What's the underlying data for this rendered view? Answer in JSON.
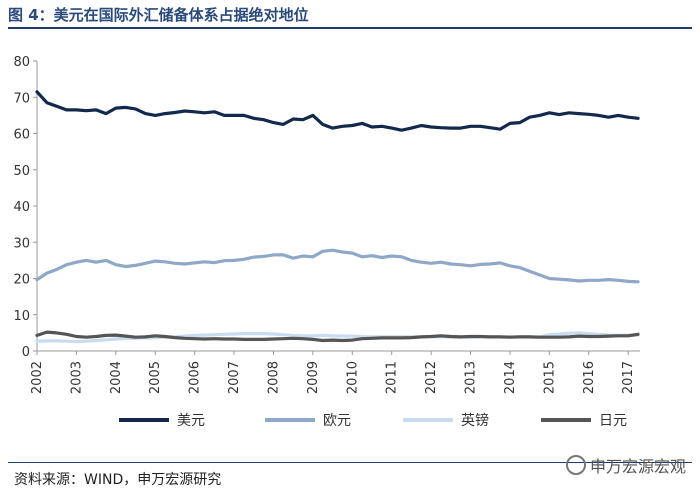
{
  "figure": {
    "title": "图 4：美元在国际外汇储备体系占据绝对地位",
    "source": "资料来源：WIND，申万宏源研究",
    "watermark": "申万宏源宏观"
  },
  "colors": {
    "usd": "#13294b",
    "eur": "#8fa8c8",
    "gbp": "#c9dcef",
    "jpy": "#555555",
    "axis": "#999999",
    "label": "#333333"
  },
  "chart_data": {
    "type": "line",
    "title": "图 4：美元在国际外汇储备体系占据绝对地位",
    "xlabel": "",
    "ylabel": "",
    "xlim": [
      2002,
      2017.3
    ],
    "ylim": [
      0,
      80
    ],
    "yticks": [
      0,
      10,
      20,
      30,
      40,
      50,
      60,
      70,
      80
    ],
    "xticks": [
      "2002",
      "2003",
      "2004",
      "2005",
      "2006",
      "2007",
      "2008",
      "2009",
      "2010",
      "2011",
      "2012",
      "2013",
      "2014",
      "2015",
      "2016",
      "2017"
    ],
    "grid": false,
    "legend": "bottom",
    "x": [
      2002.0,
      2002.25,
      2002.5,
      2002.75,
      2003.0,
      2003.25,
      2003.5,
      2003.75,
      2004.0,
      2004.25,
      2004.5,
      2004.75,
      2005.0,
      2005.25,
      2005.5,
      2005.75,
      2006.0,
      2006.25,
      2006.5,
      2006.75,
      2007.0,
      2007.25,
      2007.5,
      2007.75,
      2008.0,
      2008.25,
      2008.5,
      2008.75,
      2009.0,
      2009.25,
      2009.5,
      2009.75,
      2010.0,
      2010.25,
      2010.5,
      2010.75,
      2011.0,
      2011.25,
      2011.5,
      2011.75,
      2012.0,
      2012.25,
      2012.5,
      2012.75,
      2013.0,
      2013.25,
      2013.5,
      2013.75,
      2014.0,
      2014.25,
      2014.5,
      2014.75,
      2015.0,
      2015.25,
      2015.5,
      2015.75,
      2016.0,
      2016.25,
      2016.5,
      2016.75,
      2017.0,
      2017.25
    ],
    "series": [
      {
        "name": "美元",
        "key": "usd",
        "values": [
          71.5,
          68.5,
          67.5,
          66.5,
          66.5,
          66.3,
          66.5,
          65.5,
          67.0,
          67.2,
          66.8,
          65.5,
          65.0,
          65.5,
          65.8,
          66.2,
          66.0,
          65.7,
          66.0,
          65.0,
          65.0,
          65.0,
          64.2,
          63.8,
          63.0,
          62.5,
          64.0,
          63.8,
          65.0,
          62.5,
          61.5,
          62.0,
          62.2,
          62.8,
          61.8,
          62.0,
          61.5,
          60.9,
          61.5,
          62.2,
          61.8,
          61.6,
          61.5,
          61.5,
          62.0,
          62.0,
          61.6,
          61.2,
          62.8,
          63.0,
          64.5,
          65.0,
          65.7,
          65.2,
          65.7,
          65.5,
          65.3,
          65.0,
          64.5,
          65.0,
          64.5,
          64.2
        ]
      },
      {
        "name": "欧元",
        "key": "eur",
        "values": [
          19.7,
          21.5,
          22.5,
          23.8,
          24.5,
          25.0,
          24.5,
          25.0,
          23.8,
          23.3,
          23.6,
          24.2,
          24.8,
          24.6,
          24.2,
          24.0,
          24.3,
          24.6,
          24.4,
          24.9,
          25.0,
          25.3,
          25.9,
          26.1,
          26.5,
          26.5,
          25.6,
          26.2,
          26.0,
          27.5,
          27.8,
          27.3,
          27.0,
          26.0,
          26.3,
          25.8,
          26.2,
          26.0,
          25.0,
          24.5,
          24.2,
          24.5,
          24.0,
          23.8,
          23.5,
          23.9,
          24.0,
          24.3,
          23.5,
          23.0,
          22.0,
          21.0,
          20.0,
          19.8,
          19.6,
          19.3,
          19.5,
          19.5,
          19.7,
          19.5,
          19.2,
          19.1
        ]
      },
      {
        "name": "英镑",
        "key": "gbp",
        "values": [
          2.7,
          2.8,
          2.8,
          2.7,
          2.6,
          2.7,
          2.9,
          3.1,
          3.3,
          3.4,
          3.5,
          3.6,
          3.7,
          3.8,
          3.9,
          4.1,
          4.3,
          4.4,
          4.5,
          4.6,
          4.7,
          4.8,
          4.8,
          4.8,
          4.7,
          4.5,
          4.3,
          4.2,
          4.2,
          4.3,
          4.2,
          4.1,
          4.1,
          4.0,
          3.9,
          3.9,
          3.9,
          3.9,
          3.9,
          3.9,
          3.9,
          3.9,
          3.8,
          3.8,
          3.8,
          3.9,
          3.9,
          3.9,
          3.9,
          3.9,
          3.9,
          3.9,
          4.5,
          4.7,
          4.9,
          5.0,
          4.8,
          4.6,
          4.4,
          4.3,
          4.4,
          4.4
        ]
      },
      {
        "name": "日元",
        "key": "jpy",
        "values": [
          4.3,
          5.2,
          5.0,
          4.6,
          4.0,
          3.8,
          4.0,
          4.3,
          4.4,
          4.1,
          3.8,
          3.9,
          4.2,
          4.0,
          3.7,
          3.5,
          3.4,
          3.3,
          3.4,
          3.3,
          3.3,
          3.2,
          3.2,
          3.2,
          3.3,
          3.4,
          3.5,
          3.4,
          3.2,
          2.9,
          3.0,
          2.9,
          3.0,
          3.4,
          3.5,
          3.6,
          3.6,
          3.6,
          3.7,
          3.9,
          4.0,
          4.2,
          4.0,
          3.9,
          4.0,
          4.0,
          3.9,
          3.9,
          3.8,
          3.9,
          3.9,
          3.8,
          3.8,
          3.8,
          3.9,
          4.1,
          4.0,
          4.0,
          4.1,
          4.2,
          4.2,
          4.6
        ]
      }
    ]
  }
}
